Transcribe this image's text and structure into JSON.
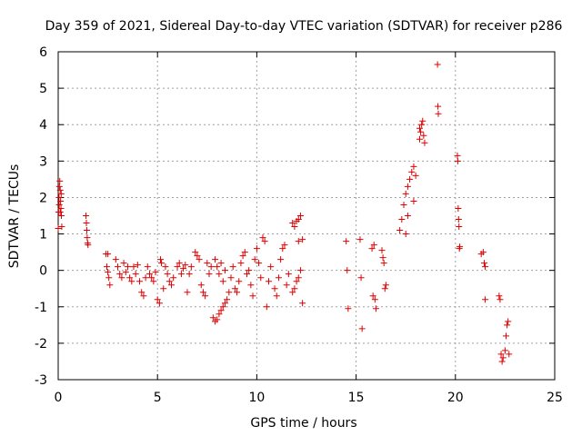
{
  "chart_data": {
    "type": "scatter",
    "title": "Day 359 of 2021, Sidereal Day-to-day VTEC variation (SDTVAR) for receiver p286",
    "xlabel": "GPS time / hours",
    "ylabel": "SDTVAR / TECUs",
    "xlim": [
      0,
      25
    ],
    "ylim": [
      -3,
      6
    ],
    "xticks": [
      0,
      5,
      10,
      15,
      20,
      25
    ],
    "yticks": [
      -3,
      -2,
      -1,
      0,
      1,
      2,
      3,
      4,
      5,
      6
    ],
    "grid": true,
    "marker": "+",
    "color": "#e00000",
    "series": [
      {
        "name": "SDTVAR",
        "points": [
          [
            0.0,
            1.15
          ],
          [
            0.02,
            1.6
          ],
          [
            0.04,
            2.0
          ],
          [
            0.06,
            2.3
          ],
          [
            0.08,
            2.45
          ],
          [
            0.1,
            2.2
          ],
          [
            0.12,
            1.9
          ],
          [
            0.14,
            1.7
          ],
          [
            0.16,
            1.5
          ],
          [
            0.18,
            1.2
          ],
          [
            0.05,
            1.8
          ],
          [
            0.1,
            1.6
          ],
          [
            0.15,
            2.1
          ],
          [
            1.4,
            1.5
          ],
          [
            1.42,
            1.3
          ],
          [
            1.44,
            1.1
          ],
          [
            1.46,
            0.9
          ],
          [
            1.48,
            0.75
          ],
          [
            1.5,
            0.7
          ],
          [
            2.4,
            0.45
          ],
          [
            2.45,
            0.1
          ],
          [
            2.5,
            -0.05
          ],
          [
            2.55,
            -0.2
          ],
          [
            2.6,
            -0.4
          ],
          [
            2.5,
            0.45
          ],
          [
            2.9,
            0.3
          ],
          [
            3.0,
            0.1
          ],
          [
            3.1,
            -0.1
          ],
          [
            3.2,
            -0.2
          ],
          [
            3.3,
            0.2
          ],
          [
            3.4,
            -0.05
          ],
          [
            3.5,
            0.1
          ],
          [
            3.6,
            -0.2
          ],
          [
            3.7,
            -0.3
          ],
          [
            3.8,
            0.1
          ],
          [
            3.9,
            -0.1
          ],
          [
            4.0,
            0.15
          ],
          [
            4.1,
            -0.3
          ],
          [
            4.2,
            -0.6
          ],
          [
            4.3,
            -0.7
          ],
          [
            4.4,
            -0.2
          ],
          [
            4.5,
            0.1
          ],
          [
            4.6,
            -0.1
          ],
          [
            4.7,
            -0.2
          ],
          [
            4.8,
            -0.3
          ],
          [
            4.9,
            -0.05
          ],
          [
            5.0,
            -0.8
          ],
          [
            5.1,
            -0.9
          ],
          [
            5.15,
            0.3
          ],
          [
            5.2,
            0.2
          ],
          [
            5.3,
            -0.5
          ],
          [
            5.4,
            0.1
          ],
          [
            5.5,
            -0.1
          ],
          [
            5.6,
            -0.3
          ],
          [
            5.7,
            -0.4
          ],
          [
            5.8,
            -0.2
          ],
          [
            6.0,
            0.1
          ],
          [
            6.1,
            0.2
          ],
          [
            6.2,
            -0.1
          ],
          [
            6.3,
            0.05
          ],
          [
            6.4,
            0.15
          ],
          [
            6.5,
            -0.6
          ],
          [
            6.6,
            -0.1
          ],
          [
            6.7,
            0.1
          ],
          [
            6.9,
            0.5
          ],
          [
            7.0,
            0.4
          ],
          [
            7.1,
            0.3
          ],
          [
            7.2,
            -0.4
          ],
          [
            7.3,
            -0.6
          ],
          [
            7.4,
            -0.7
          ],
          [
            7.5,
            0.2
          ],
          [
            7.6,
            -0.1
          ],
          [
            7.7,
            0.1
          ],
          [
            7.8,
            -1.3
          ],
          [
            7.9,
            -1.4
          ],
          [
            8.0,
            -1.35
          ],
          [
            8.1,
            -1.2
          ],
          [
            8.2,
            -1.1
          ],
          [
            8.3,
            -1.0
          ],
          [
            8.4,
            -0.9
          ],
          [
            8.5,
            -0.8
          ],
          [
            8.6,
            -0.6
          ],
          [
            7.9,
            0.3
          ],
          [
            8.0,
            0.1
          ],
          [
            8.1,
            -0.1
          ],
          [
            8.2,
            0.2
          ],
          [
            8.3,
            -0.3
          ],
          [
            8.4,
            0.0
          ],
          [
            8.7,
            -0.2
          ],
          [
            8.8,
            0.1
          ],
          [
            8.9,
            -0.5
          ],
          [
            9.0,
            -0.6
          ],
          [
            9.1,
            -0.3
          ],
          [
            9.2,
            0.2
          ],
          [
            9.3,
            0.4
          ],
          [
            9.4,
            0.5
          ],
          [
            9.5,
            -0.1
          ],
          [
            9.6,
            0.0
          ],
          [
            9.7,
            -0.4
          ],
          [
            9.8,
            -0.7
          ],
          [
            9.9,
            0.3
          ],
          [
            10.0,
            0.6
          ],
          [
            10.1,
            0.2
          ],
          [
            10.2,
            -0.2
          ],
          [
            10.3,
            0.9
          ],
          [
            10.4,
            0.8
          ],
          [
            10.5,
            -1.0
          ],
          [
            10.6,
            -0.3
          ],
          [
            10.7,
            0.1
          ],
          [
            10.9,
            -0.5
          ],
          [
            11.0,
            -0.7
          ],
          [
            11.1,
            -0.2
          ],
          [
            11.2,
            0.3
          ],
          [
            11.3,
            0.6
          ],
          [
            11.4,
            0.7
          ],
          [
            11.5,
            -0.4
          ],
          [
            11.6,
            -0.1
          ],
          [
            11.8,
            1.3
          ],
          [
            11.9,
            1.2
          ],
          [
            12.0,
            1.35
          ],
          [
            12.1,
            1.4
          ],
          [
            12.2,
            1.5
          ],
          [
            11.8,
            -0.6
          ],
          [
            11.9,
            -0.5
          ],
          [
            12.0,
            -0.3
          ],
          [
            12.1,
            -0.2
          ],
          [
            12.2,
            0.0
          ],
          [
            12.3,
            -0.9
          ],
          [
            12.3,
            0.85
          ],
          [
            12.1,
            0.8
          ],
          [
            14.5,
            0.8
          ],
          [
            14.55,
            0.0
          ],
          [
            14.6,
            -1.05
          ],
          [
            15.2,
            0.85
          ],
          [
            15.25,
            -0.2
          ],
          [
            15.3,
            -1.6
          ],
          [
            15.8,
            0.6
          ],
          [
            15.9,
            0.7
          ],
          [
            15.85,
            -0.7
          ],
          [
            15.95,
            -0.8
          ],
          [
            16.0,
            -1.05
          ],
          [
            16.3,
            0.55
          ],
          [
            16.35,
            0.35
          ],
          [
            16.4,
            0.2
          ],
          [
            16.45,
            -0.5
          ],
          [
            16.5,
            -0.4
          ],
          [
            17.2,
            1.1
          ],
          [
            17.3,
            1.4
          ],
          [
            17.4,
            1.8
          ],
          [
            17.5,
            2.1
          ],
          [
            17.6,
            2.3
          ],
          [
            17.7,
            2.5
          ],
          [
            17.8,
            2.7
          ],
          [
            17.9,
            2.85
          ],
          [
            18.0,
            2.6
          ],
          [
            17.5,
            1.0
          ],
          [
            17.6,
            1.5
          ],
          [
            17.9,
            1.9
          ],
          [
            18.2,
            3.6
          ],
          [
            18.25,
            3.8
          ],
          [
            18.3,
            4.0
          ],
          [
            18.35,
            4.1
          ],
          [
            18.4,
            3.7
          ],
          [
            18.45,
            3.5
          ],
          [
            18.2,
            3.9
          ],
          [
            19.1,
            5.65
          ],
          [
            19.12,
            4.5
          ],
          [
            19.14,
            4.3
          ],
          [
            20.1,
            3.15
          ],
          [
            20.12,
            3.0
          ],
          [
            20.14,
            1.7
          ],
          [
            20.16,
            1.4
          ],
          [
            20.18,
            1.2
          ],
          [
            20.2,
            0.6
          ],
          [
            20.22,
            0.65
          ],
          [
            21.3,
            0.45
          ],
          [
            21.4,
            0.5
          ],
          [
            21.45,
            0.2
          ],
          [
            21.5,
            0.1
          ],
          [
            21.5,
            -0.8
          ],
          [
            22.2,
            -0.7
          ],
          [
            22.25,
            -0.8
          ],
          [
            22.3,
            -2.3
          ],
          [
            22.35,
            -2.5
          ],
          [
            22.4,
            -2.4
          ],
          [
            22.5,
            -2.2
          ],
          [
            22.55,
            -1.8
          ],
          [
            22.6,
            -1.5
          ],
          [
            22.65,
            -1.4
          ],
          [
            22.7,
            -2.3
          ]
        ]
      }
    ]
  }
}
